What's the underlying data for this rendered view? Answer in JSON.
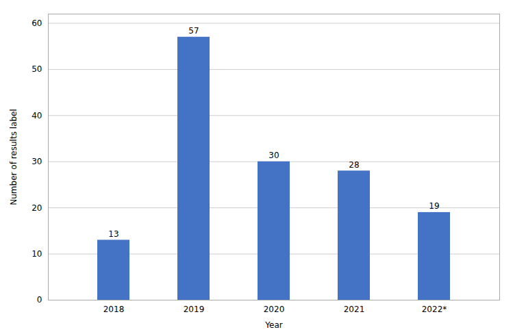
{
  "chart_data": {
    "type": "bar",
    "categories": [
      "2018",
      "2019",
      "2020",
      "2021",
      "2022*"
    ],
    "values": [
      13,
      57,
      30,
      28,
      19
    ],
    "color": "#4472C4",
    "xlabel": "Year",
    "ylabel": "Number of results label",
    "ylim": [
      0,
      62
    ],
    "yticks": [
      0,
      10,
      20,
      30,
      40,
      50,
      60
    ],
    "grid": true,
    "data_labels": true
  }
}
